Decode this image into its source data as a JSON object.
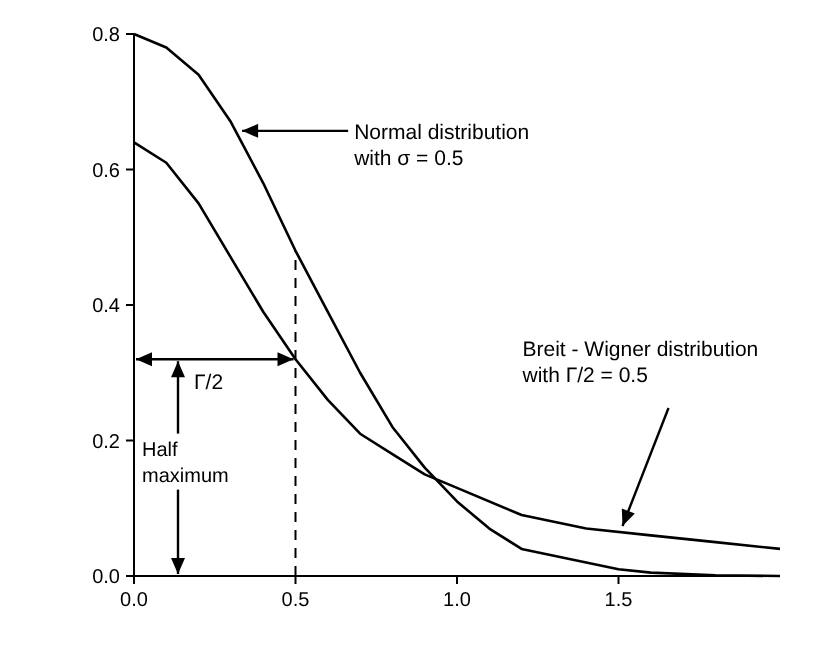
{
  "chart_data": {
    "type": "line",
    "xlim": [
      0,
      2
    ],
    "ylim": [
      0,
      0.8
    ],
    "xticks": [
      {
        "value": 0,
        "label": "0.0"
      },
      {
        "value": 0.5,
        "label": "0.5"
      },
      {
        "value": 1,
        "label": "1.0"
      },
      {
        "value": 1.5,
        "label": "1.5"
      }
    ],
    "yticks": [
      {
        "value": 0,
        "label": "0.0"
      },
      {
        "value": 0.2,
        "label": "0.2"
      },
      {
        "value": 0.4,
        "label": "0.4"
      },
      {
        "value": 0.6,
        "label": "0.6"
      },
      {
        "value": 0.8,
        "label": "0.8"
      }
    ],
    "marker": "none",
    "line_style": "solid",
    "grid": false,
    "series": [
      {
        "color": "#000000",
        "x": [
          0,
          0.1,
          0.2,
          0.3,
          0.4,
          0.5,
          0.6,
          0.7,
          0.8,
          0.9,
          1.0,
          1.1,
          1.2,
          1.3,
          1.4,
          1.5,
          1.6,
          1.8,
          2.0
        ],
        "values": [
          0.8,
          0.78,
          0.74,
          0.67,
          0.58,
          0.48,
          0.39,
          0.3,
          0.22,
          0.16,
          0.11,
          0.07,
          0.04,
          0.03,
          0.02,
          0.01,
          0.005,
          0.001,
          0
        ]
      },
      {
        "color": "#000000",
        "x": [
          0,
          0.1,
          0.2,
          0.3,
          0.4,
          0.5,
          0.6,
          0.7,
          0.8,
          0.9,
          1.0,
          1.2,
          1.4,
          1.6,
          1.8,
          2.0
        ],
        "values": [
          0.64,
          0.61,
          0.55,
          0.47,
          0.39,
          0.32,
          0.26,
          0.21,
          0.18,
          0.15,
          0.13,
          0.09,
          0.07,
          0.06,
          0.05,
          0.04
        ]
      }
    ],
    "ref_lines": [
      {
        "axis": "x",
        "value": 0.5,
        "line_style": "dashed",
        "color": "#000000"
      }
    ],
    "annotations": [
      {
        "text": "Normal distribution\nwith σ = 0.5",
        "x": 0.31,
        "y": 0.66
      },
      {
        "text": "Breit - Wigner distribution\nwith Γ/2 = 0.5",
        "x": 1.5,
        "y": 0.065
      },
      "Γ/2",
      "Half maximum"
    ]
  }
}
